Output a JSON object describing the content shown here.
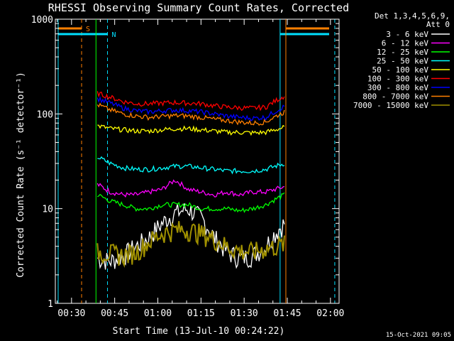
{
  "chart_data": {
    "type": "line",
    "title": "RHESSI Observing Summary Count Rates, Corrected",
    "xlabel": "Start Time (13-Jul-10 00:24:22)",
    "ylabel": "Corrected Count Rate (s⁻¹ detector⁻¹)",
    "y_scale": "log",
    "ylim": [
      1,
      1000
    ],
    "xlim_minutes": [
      24.37,
      123
    ],
    "x_tick_minutes": [
      30,
      45,
      60,
      75,
      90,
      105,
      120
    ],
    "x_tick_labels": [
      "00:30",
      "00:45",
      "01:00",
      "01:15",
      "01:30",
      "01:45",
      "02:00"
    ],
    "y_tick_values": [
      1,
      10,
      100,
      1000
    ],
    "y_tick_labels": [
      "1",
      "10",
      "100",
      "1000"
    ],
    "legend": {
      "placement": "top-right",
      "header": [
        "Det 1,3,4,5,6,9,",
        "Att 0"
      ]
    },
    "timestamp": "15-Oct-2021 09:05",
    "markers": [
      {
        "label": "S",
        "color": "#ff7f00",
        "start_min": 24.37,
        "end_min": 33.5,
        "style": "bar-and-dashed"
      },
      {
        "label": "N",
        "color": "#00e0ff",
        "start_min": 24.37,
        "end_min": 42.5,
        "style": "bar-and-dashed"
      }
    ],
    "right_markers": [
      {
        "color": "#00e0ff",
        "start_min": 102.5,
        "end_min": 123,
        "level": 680
      },
      {
        "color": "#ff7f00",
        "start_min": 104.5,
        "end_min": 123,
        "level": 780
      }
    ],
    "vertical_lines": [
      {
        "minute": 38.5,
        "color": "#00ff00"
      },
      {
        "minute": 102.5,
        "color": "#00e0ff"
      },
      {
        "minute": 104.5,
        "color": "#ff7f00"
      },
      {
        "minute": 121.5,
        "color": "#00e0ff"
      }
    ],
    "series": [
      {
        "name": "3 - 6 keV",
        "color": "#ffffff",
        "values": [
          3,
          2.8,
          3.2,
          4,
          5,
          7,
          9,
          10,
          8,
          5,
          3.5,
          3,
          3.2,
          4,
          7
        ]
      },
      {
        "name": "6 - 12 keV",
        "color": "#ff00ff",
        "values": [
          18,
          15,
          14,
          14,
          15,
          16,
          20,
          16,
          15,
          14,
          15,
          14,
          15,
          15,
          17
        ]
      },
      {
        "name": "12 - 25 keV",
        "color": "#00ff00",
        "values": [
          14,
          12,
          11,
          10,
          10,
          11,
          11,
          11,
          10,
          10,
          10,
          9.5,
          10,
          11,
          14
        ]
      },
      {
        "name": "25 - 50 keV",
        "color": "#00ffff",
        "values": [
          35,
          30,
          27,
          26,
          26,
          27,
          28,
          28,
          27,
          26,
          25,
          25,
          25,
          26,
          30
        ]
      },
      {
        "name": "50 - 100 keV",
        "color": "#ffff00",
        "values": [
          75,
          70,
          68,
          66,
          66,
          68,
          70,
          70,
          68,
          66,
          64,
          64,
          63,
          64,
          72
        ]
      },
      {
        "name": "100 - 300 keV",
        "color": "#ff0000",
        "values": [
          165,
          150,
          135,
          128,
          128,
          130,
          132,
          130,
          128,
          122,
          118,
          116,
          115,
          118,
          155
        ]
      },
      {
        "name": "300 - 800 keV",
        "color": "#0000ff",
        "values": [
          145,
          130,
          115,
          108,
          105,
          108,
          110,
          108,
          105,
          100,
          95,
          92,
          90,
          92,
          120
        ]
      },
      {
        "name": "800 - 7000 keV",
        "color": "#ff7f00",
        "values": [
          125,
          110,
          100,
          95,
          92,
          94,
          96,
          95,
          92,
          88,
          85,
          82,
          80,
          82,
          105
        ]
      },
      {
        "name": "7000 - 15000 keV",
        "color": "#a09000",
        "values": [
          3.5,
          3.4,
          3.2,
          3.5,
          4.5,
          5.5,
          6,
          6,
          5.5,
          4.8,
          4,
          3.6,
          3.5,
          3.8,
          4.2
        ]
      }
    ],
    "series_x_minutes": [
      39,
      43.5,
      48,
      52.5,
      57,
      61.5,
      66,
      70.5,
      75,
      79.5,
      84,
      88.5,
      93,
      97.5,
      104
    ]
  }
}
